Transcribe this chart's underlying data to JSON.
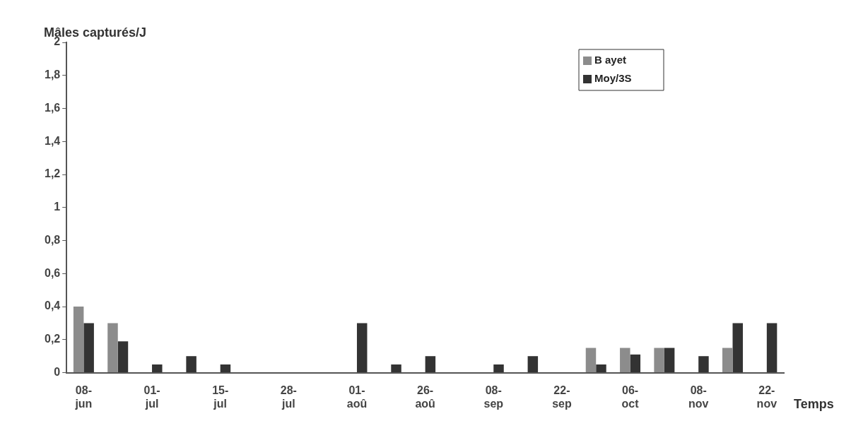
{
  "chart_data": {
    "type": "bar",
    "ylabel": "Mâles capturés/J",
    "xlabel": "Temps",
    "categories": [
      "08-jun",
      null,
      "01-jul",
      null,
      "15-jul",
      null,
      "28-jul",
      null,
      "01-aoû",
      null,
      "26-aoû",
      null,
      "08-sep",
      null,
      "22-sep",
      null,
      "06-oct",
      null,
      "08-nov",
      null,
      "22-nov"
    ],
    "series": [
      {
        "name": "B ayet",
        "color": "#8c8c8c",
        "values": [
          0.4,
          0.3,
          null,
          null,
          null,
          null,
          null,
          null,
          null,
          null,
          null,
          null,
          null,
          null,
          null,
          0.15,
          0.15,
          0.15,
          null,
          0.15,
          null
        ]
      },
      {
        "name": "Moy/3S",
        "color": "#333333",
        "values": [
          0.3,
          0.19,
          0.05,
          0.1,
          0.05,
          null,
          null,
          null,
          0.3,
          0.05,
          0.1,
          null,
          0.05,
          0.1,
          null,
          0.05,
          0.11,
          0.15,
          0.1,
          0.3,
          0.3
        ]
      }
    ],
    "ylim": [
      0,
      2
    ],
    "yticks": [
      0,
      {
        "value": 0.2,
        "label": "0,2"
      },
      {
        "value": 0.4,
        "label": "0,4"
      },
      {
        "value": 0.6,
        "label": "0,6"
      },
      {
        "value": 0.8,
        "label": "0,8"
      },
      1,
      {
        "value": 1.2,
        "label": "1,2"
      },
      {
        "value": 1.4,
        "label": "1,4"
      },
      {
        "value": 1.6,
        "label": "1,6"
      },
      {
        "value": 1.8,
        "label": "1,8"
      },
      2
    ],
    "grid": false,
    "legend": "top right"
  }
}
